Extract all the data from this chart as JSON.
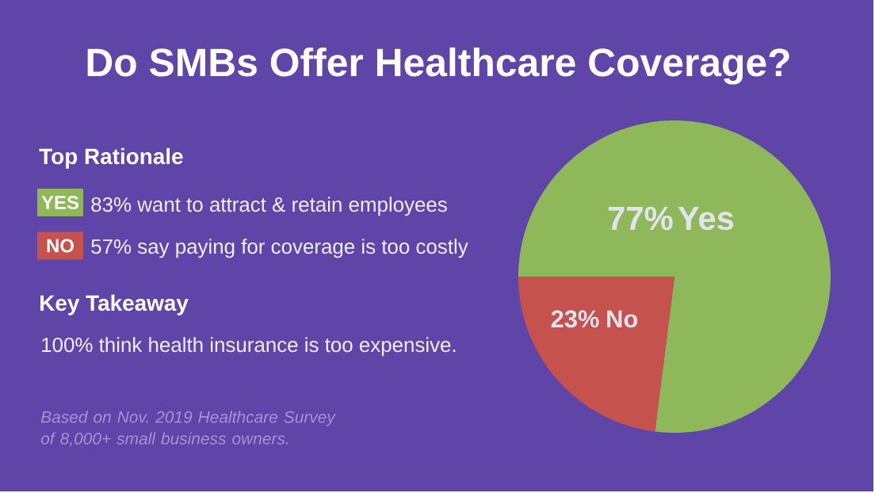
{
  "chart_data": {
    "type": "pie",
    "title": "Do SMBs Offer Healthcare Coverage?",
    "categories": [
      "Yes",
      "No"
    ],
    "values": [
      77,
      23
    ],
    "colors": [
      "#8fb85b",
      "#c6524e"
    ],
    "value_labels": [
      "77%",
      "23%"
    ],
    "annotations": [
      "Top Rationale",
      "YES",
      "83% want to attract & retain employees",
      "NO",
      "57% say paying for coverage is too costly",
      "Key Takeaway",
      "100% think health insurance is too expensive.",
      "Based on Nov. 2019 Healthcare Survey of 8,000+ small business owners."
    ]
  }
}
